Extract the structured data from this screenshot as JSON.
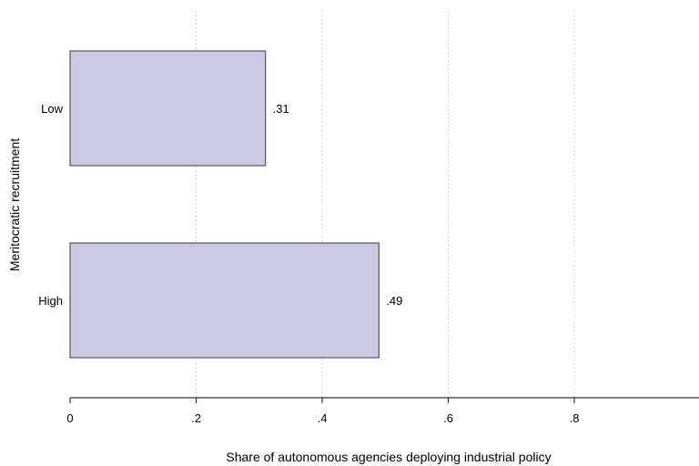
{
  "chart_data": {
    "type": "bar",
    "orientation": "horizontal",
    "categories": [
      "Low",
      "High"
    ],
    "values": [
      0.31,
      0.49
    ],
    "value_labels": [
      ".31",
      ".49"
    ],
    "xlabel": "Share of autonomous agencies deploying industrial policy",
    "ylabel": "Meritocratic recruitment",
    "xlim": [
      0,
      1
    ],
    "xticks": [
      0,
      0.2,
      0.4,
      0.6,
      0.8
    ],
    "xtick_labels": [
      "0",
      ".2",
      ".4",
      ".6",
      ".8"
    ],
    "grid": "vertical dotted",
    "colors": {
      "bar_fill": "#cbc8e2",
      "bar_stroke": "#555555",
      "grid": "#c8c8c8",
      "axis": "#333333"
    }
  }
}
